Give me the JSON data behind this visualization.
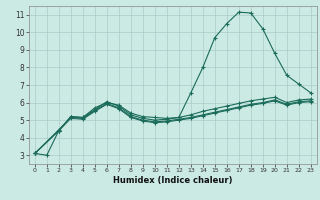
{
  "background_color": "#cceae4",
  "grid_color": "#aaccc6",
  "line_color": "#1a6b5a",
  "xlabel": "Humidex (Indice chaleur)",
  "xlim": [
    -0.5,
    23.5
  ],
  "ylim": [
    2.5,
    11.5
  ],
  "xticks": [
    0,
    1,
    2,
    3,
    4,
    5,
    6,
    7,
    8,
    9,
    10,
    11,
    12,
    13,
    14,
    15,
    16,
    17,
    18,
    19,
    20,
    21,
    22,
    23
  ],
  "yticks": [
    3,
    4,
    5,
    6,
    7,
    8,
    9,
    10,
    11
  ],
  "series1": [
    [
      0,
      3.1
    ],
    [
      1,
      3.0
    ],
    [
      2,
      4.4
    ],
    [
      3,
      5.2
    ],
    [
      4,
      5.15
    ],
    [
      5,
      5.7
    ],
    [
      6,
      6.0
    ],
    [
      7,
      5.85
    ],
    [
      8,
      5.4
    ],
    [
      9,
      5.2
    ],
    [
      10,
      5.15
    ],
    [
      11,
      5.1
    ],
    [
      12,
      5.15
    ],
    [
      13,
      6.55
    ],
    [
      14,
      8.0
    ],
    [
      15,
      9.7
    ],
    [
      16,
      10.5
    ],
    [
      17,
      11.15
    ],
    [
      18,
      11.1
    ],
    [
      19,
      10.2
    ],
    [
      20,
      8.8
    ],
    [
      21,
      7.55
    ],
    [
      22,
      7.05
    ],
    [
      23,
      6.55
    ]
  ],
  "series2": [
    [
      0,
      3.1
    ],
    [
      2,
      4.4
    ],
    [
      3,
      5.2
    ],
    [
      4,
      5.15
    ],
    [
      5,
      5.6
    ],
    [
      6,
      6.05
    ],
    [
      7,
      5.8
    ],
    [
      8,
      5.3
    ],
    [
      9,
      5.1
    ],
    [
      10,
      5.0
    ],
    [
      11,
      5.05
    ],
    [
      12,
      5.15
    ],
    [
      13,
      5.3
    ],
    [
      14,
      5.5
    ],
    [
      15,
      5.65
    ],
    [
      16,
      5.8
    ],
    [
      17,
      5.95
    ],
    [
      18,
      6.1
    ],
    [
      19,
      6.2
    ],
    [
      20,
      6.3
    ],
    [
      21,
      6.0
    ],
    [
      22,
      6.15
    ],
    [
      23,
      6.2
    ]
  ],
  "series3": [
    [
      0,
      3.1
    ],
    [
      2,
      4.4
    ],
    [
      3,
      5.1
    ],
    [
      4,
      5.05
    ],
    [
      5,
      5.5
    ],
    [
      6,
      5.9
    ],
    [
      7,
      5.65
    ],
    [
      8,
      5.15
    ],
    [
      9,
      4.95
    ],
    [
      10,
      4.85
    ],
    [
      11,
      4.9
    ],
    [
      12,
      5.0
    ],
    [
      13,
      5.1
    ],
    [
      14,
      5.25
    ],
    [
      15,
      5.4
    ],
    [
      16,
      5.55
    ],
    [
      17,
      5.7
    ],
    [
      18,
      5.85
    ],
    [
      19,
      5.95
    ],
    [
      20,
      6.1
    ],
    [
      21,
      5.85
    ],
    [
      22,
      6.0
    ],
    [
      23,
      6.05
    ]
  ],
  "series4": [
    [
      0,
      3.1
    ],
    [
      2,
      4.45
    ],
    [
      3,
      5.15
    ],
    [
      4,
      5.1
    ],
    [
      5,
      5.55
    ],
    [
      6,
      5.95
    ],
    [
      7,
      5.7
    ],
    [
      8,
      5.2
    ],
    [
      9,
      5.0
    ],
    [
      10,
      4.9
    ],
    [
      11,
      4.95
    ],
    [
      12,
      5.05
    ],
    [
      13,
      5.15
    ],
    [
      14,
      5.3
    ],
    [
      15,
      5.45
    ],
    [
      16,
      5.6
    ],
    [
      17,
      5.75
    ],
    [
      18,
      5.9
    ],
    [
      19,
      6.0
    ],
    [
      20,
      6.15
    ],
    [
      21,
      5.9
    ],
    [
      22,
      6.05
    ],
    [
      23,
      6.1
    ]
  ]
}
